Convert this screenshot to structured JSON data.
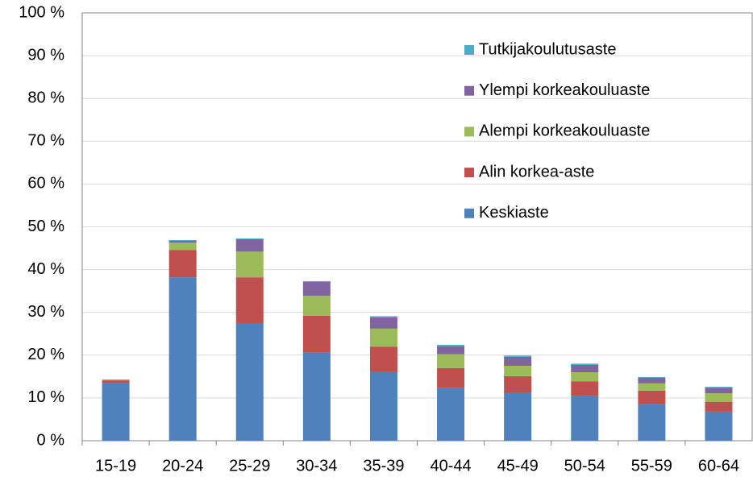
{
  "chart_data": {
    "type": "bar",
    "stacked": true,
    "categories": [
      "15-19",
      "20-24",
      "25-29",
      "30-34",
      "35-39",
      "40-44",
      "45-49",
      "50-54",
      "55-59",
      "60-64"
    ],
    "series": [
      {
        "name": "Keskiaste",
        "color": "#4f81bd",
        "values": [
          13.4,
          38.2,
          27.5,
          20.7,
          16.2,
          12.4,
          11.3,
          10.4,
          8.5,
          6.8
        ]
      },
      {
        "name": "Alin korkea-aste",
        "color": "#c0504d",
        "values": [
          0.7,
          6.4,
          10.7,
          8.5,
          5.8,
          4.6,
          3.8,
          3.5,
          3.2,
          2.3
        ]
      },
      {
        "name": "Alempi korkeakouluaste",
        "color": "#9bbb59",
        "values": [
          0.1,
          1.7,
          6.0,
          4.7,
          4.2,
          3.2,
          2.4,
          2.1,
          1.7,
          2.0
        ]
      },
      {
        "name": "Ylempi korkeakouluaste",
        "color": "#8064a2",
        "values": [
          0.1,
          0.4,
          2.9,
          3.2,
          2.6,
          1.9,
          2.1,
          1.7,
          1.3,
          1.3
        ]
      },
      {
        "name": "Tutkijakoulutusaste",
        "color": "#4bacc6",
        "values": [
          0.0,
          0.2,
          0.2,
          0.2,
          0.3,
          0.3,
          0.3,
          0.3,
          0.2,
          0.2
        ]
      }
    ],
    "ylim": [
      0,
      100
    ],
    "yticks": [
      {
        "value": 0,
        "label": "0 %"
      },
      {
        "value": 10,
        "label": "10 %"
      },
      {
        "value": 20,
        "label": "20 %"
      },
      {
        "value": 30,
        "label": "30 %"
      },
      {
        "value": 40,
        "label": "40 %"
      },
      {
        "value": 50,
        "label": "50 %"
      },
      {
        "value": 60,
        "label": "60 %"
      },
      {
        "value": 70,
        "label": "70 %"
      },
      {
        "value": 80,
        "label": "80 %"
      },
      {
        "value": 90,
        "label": "90 %"
      },
      {
        "value": 100,
        "label": "100 %"
      }
    ],
    "grid": true,
    "legend": "upper right"
  }
}
